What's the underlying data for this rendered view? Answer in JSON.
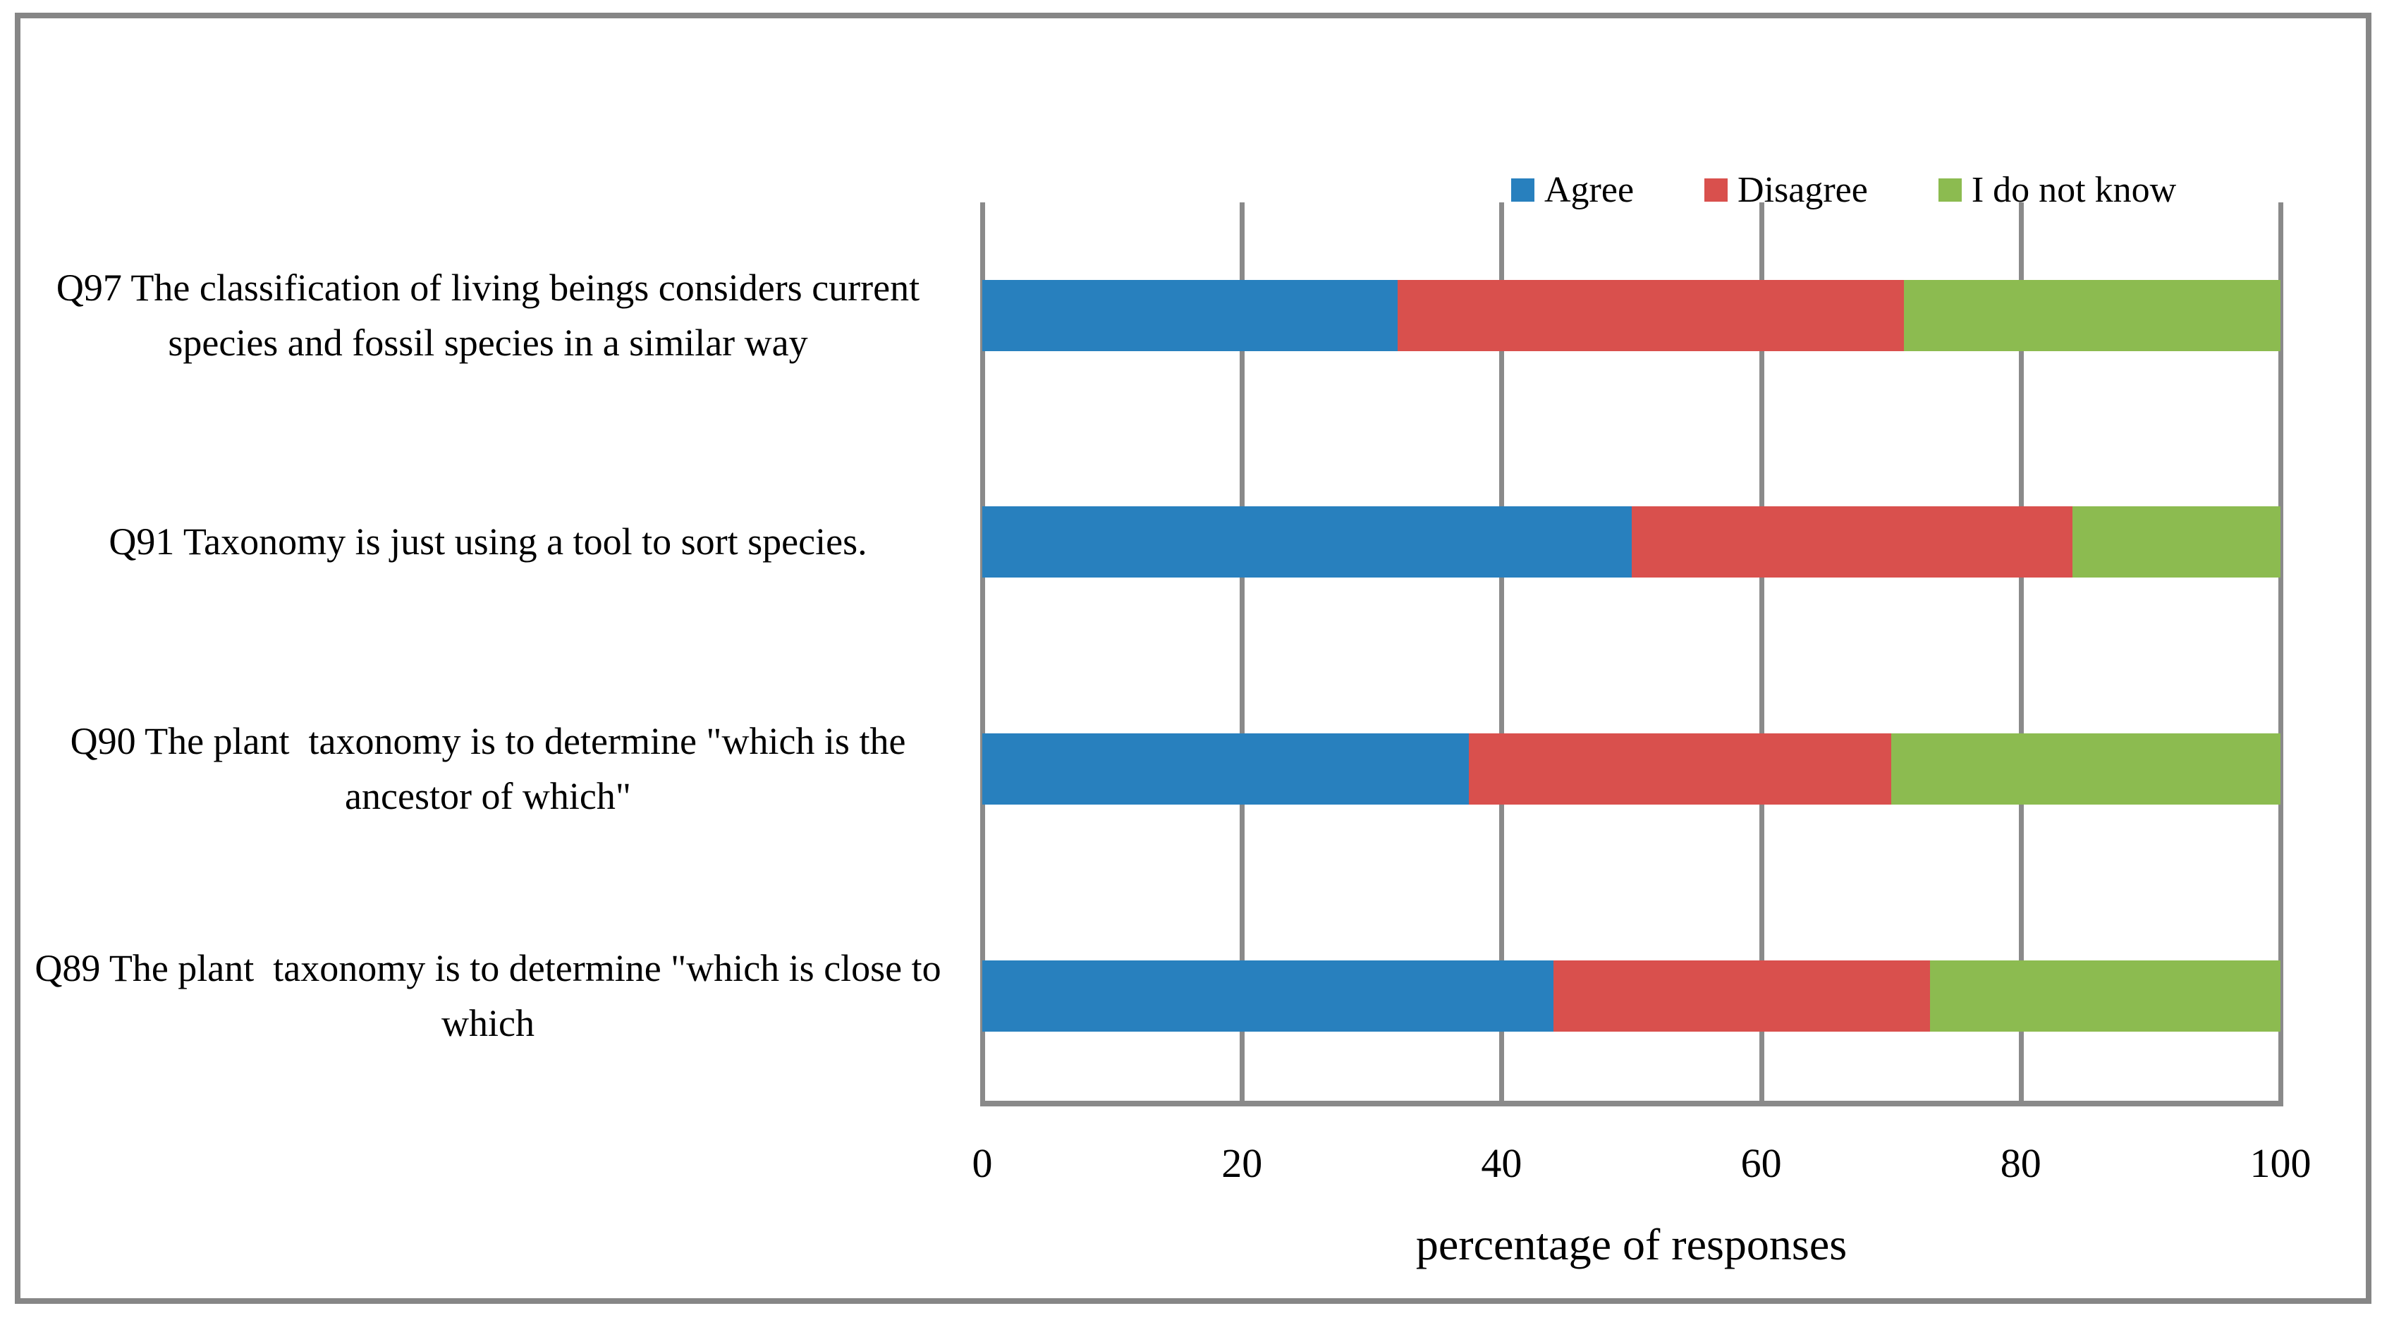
{
  "chart_data": {
    "type": "bar",
    "orientation": "horizontal",
    "stacked": true,
    "row_order": "top-to-bottom",
    "categories": [
      "Q97 The classification of living beings considers current species and fossil species in a similar way",
      "Q91 Taxonomy is just using a tool to sort species.",
      "Q90 The plant  taxonomy is to determine \"which is the ancestor of which\"",
      "Q89 The plant  taxonomy is to determine \"which is close to which"
    ],
    "series": [
      {
        "name": "Agree",
        "color": "#2880BE",
        "values": [
          32,
          50,
          37.5,
          44
        ]
      },
      {
        "name": "Disagree",
        "color": "#D9504D",
        "values": [
          39,
          34,
          32.5,
          29
        ]
      },
      {
        "name": "I do not know",
        "color": "#8CBB50",
        "values": [
          29,
          16,
          30,
          27
        ]
      }
    ],
    "xlabel": "percentage of responses",
    "x_ticks": [
      0,
      20,
      40,
      60,
      80,
      100
    ],
    "xlim": [
      0,
      100
    ],
    "legend_position": "top",
    "grid": "vertical"
  }
}
